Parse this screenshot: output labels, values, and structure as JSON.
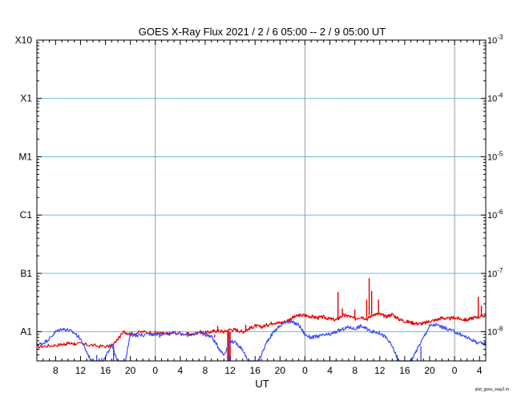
{
  "chart_data": {
    "type": "line",
    "title": "GOES X-Ray Flux   2021 /  2  /  6   05:00 --  2  /  9   05:00   UT",
    "xlabel": "UT",
    "ylabel": "",
    "footer": "plot_goes_xray2.m",
    "x_range_hours": [
      0,
      72
    ],
    "x_ticks": [
      {
        "t": 3,
        "label": "8"
      },
      {
        "t": 7,
        "label": "12"
      },
      {
        "t": 11,
        "label": "16"
      },
      {
        "t": 15,
        "label": "20"
      },
      {
        "t": 19,
        "label": "0"
      },
      {
        "t": 23,
        "label": "4"
      },
      {
        "t": 27,
        "label": "8"
      },
      {
        "t": 31,
        "label": "12"
      },
      {
        "t": 35,
        "label": "16"
      },
      {
        "t": 39,
        "label": "20"
      },
      {
        "t": 43,
        "label": "0"
      },
      {
        "t": 47,
        "label": "4"
      },
      {
        "t": 51,
        "label": "8"
      },
      {
        "t": 55,
        "label": "12"
      },
      {
        "t": 59,
        "label": "16"
      },
      {
        "t": 63,
        "label": "20"
      },
      {
        "t": 67,
        "label": "0"
      },
      {
        "t": 71,
        "label": "4"
      }
    ],
    "day_boundaries_hours": [
      19,
      43,
      67
    ],
    "y_scale": "log",
    "y_range_log10": [
      -8.5,
      -3
    ],
    "y_left_labels": [
      {
        "log": -8,
        "label": "A1"
      },
      {
        "log": -7,
        "label": "B1"
      },
      {
        "log": -6,
        "label": "C1"
      },
      {
        "log": -5,
        "label": "M1"
      },
      {
        "log": -4,
        "label": "X1"
      },
      {
        "log": -3,
        "label": "X10"
      }
    ],
    "y_right_labels": [
      {
        "log": -8,
        "label": "10",
        "exp": "-8"
      },
      {
        "log": -7,
        "label": "10",
        "exp": "-7"
      },
      {
        "log": -6,
        "label": "10",
        "exp": "-6"
      },
      {
        "log": -5,
        "label": "10",
        "exp": "-5"
      },
      {
        "log": -4,
        "label": "10",
        "exp": "-4"
      },
      {
        "log": -3,
        "label": "10",
        "exp": "-3"
      }
    ],
    "grid": true,
    "series": [
      {
        "color": "#e60000",
        "points_log10": [
          [
            0,
            -8.26
          ],
          [
            2,
            -8.24
          ],
          [
            4,
            -8.22
          ],
          [
            5,
            -8.2
          ],
          [
            6,
            -8.2
          ],
          [
            8,
            -8.22
          ],
          [
            10,
            -8.25
          ],
          [
            12,
            -8.25
          ],
          [
            14,
            -8.0
          ],
          [
            15,
            -8.04
          ],
          [
            17,
            -8.0
          ],
          [
            19,
            -8.02
          ],
          [
            20,
            -8.03
          ],
          [
            21,
            -8.04
          ],
          [
            22,
            -8.02
          ],
          [
            24,
            -8.04
          ],
          [
            25,
            -8.05
          ],
          [
            26,
            -8.0
          ],
          [
            27,
            -8.02
          ],
          [
            28,
            -8.0
          ],
          [
            29,
            -7.98
          ],
          [
            30,
            -8.0
          ],
          [
            31,
            -7.96
          ],
          [
            32,
            -7.97
          ],
          [
            33,
            -8.0
          ],
          [
            34,
            -7.95
          ],
          [
            35,
            -7.9
          ],
          [
            36,
            -7.92
          ],
          [
            37,
            -7.88
          ],
          [
            38,
            -7.84
          ],
          [
            39,
            -7.85
          ],
          [
            40,
            -7.82
          ],
          [
            41,
            -7.76
          ],
          [
            42,
            -7.72
          ],
          [
            43,
            -7.72
          ],
          [
            44,
            -7.74
          ],
          [
            45,
            -7.76
          ],
          [
            46,
            -7.75
          ],
          [
            47,
            -7.78
          ],
          [
            48,
            -7.8
          ],
          [
            49,
            -7.72
          ],
          [
            50,
            -7.73
          ],
          [
            51,
            -7.78
          ],
          [
            52,
            -7.74
          ],
          [
            53,
            -7.78
          ],
          [
            54,
            -7.7
          ],
          [
            55,
            -7.7
          ],
          [
            56,
            -7.74
          ],
          [
            57,
            -7.7
          ],
          [
            58,
            -7.78
          ],
          [
            59,
            -7.82
          ],
          [
            60,
            -7.84
          ],
          [
            61,
            -7.86
          ],
          [
            62,
            -7.86
          ],
          [
            63,
            -7.82
          ],
          [
            64,
            -7.8
          ],
          [
            65,
            -7.76
          ],
          [
            66,
            -7.78
          ],
          [
            67,
            -7.76
          ],
          [
            68,
            -7.78
          ],
          [
            69,
            -7.8
          ],
          [
            70,
            -7.76
          ],
          [
            71,
            -7.74
          ],
          [
            72,
            -7.72
          ]
        ],
        "spikes": [
          [
            6,
            -8.24,
            -8.18
          ],
          [
            19.7,
            -8.04,
            -8.1
          ],
          [
            28.5,
            -8.05,
            -8.1
          ],
          [
            29,
            -8.0,
            -7.9
          ],
          [
            30.6,
            -8.0,
            -8.5
          ],
          [
            30.8,
            -8.0,
            -8.5
          ],
          [
            31,
            -8.0,
            -8.5
          ],
          [
            33.5,
            -7.98,
            -7.88
          ],
          [
            48.3,
            -7.8,
            -7.32
          ],
          [
            49,
            -7.74,
            -7.6
          ],
          [
            51,
            -7.78,
            -7.62
          ],
          [
            52.9,
            -7.76,
            -7.45
          ],
          [
            53.3,
            -7.72,
            -7.08
          ],
          [
            53.7,
            -7.7,
            -7.3
          ],
          [
            54.8,
            -7.7,
            -7.45
          ],
          [
            70.8,
            -7.76,
            -7.4
          ],
          [
            71.3,
            -7.74,
            -7.55
          ]
        ]
      },
      {
        "color": "#3b4bff",
        "points_log10": [
          [
            0,
            -8.22
          ],
          [
            1,
            -8.2
          ],
          [
            2,
            -8.12
          ],
          [
            3,
            -8.0
          ],
          [
            4,
            -7.95
          ],
          [
            5,
            -7.97
          ],
          [
            6,
            -8.02
          ],
          [
            7,
            -8.12
          ],
          [
            8,
            -8.35
          ],
          [
            9,
            -8.55
          ],
          [
            10,
            -8.6
          ],
          [
            11,
            -8.45
          ],
          [
            12,
            -8.2
          ],
          [
            13,
            -8.55
          ],
          [
            14,
            -8.6
          ],
          [
            15,
            -8.05
          ],
          [
            16,
            -8.06
          ],
          [
            18,
            -8.05
          ],
          [
            19,
            -8.04
          ],
          [
            20,
            -8.04
          ],
          [
            22,
            -8.02
          ],
          [
            24,
            -8.06
          ],
          [
            26,
            -8.02
          ],
          [
            27,
            -8.05
          ],
          [
            28,
            -8.08
          ],
          [
            29,
            -8.25
          ],
          [
            30,
            -8.4
          ],
          [
            31,
            -8.15
          ],
          [
            32,
            -8.2
          ],
          [
            33,
            -8.3
          ],
          [
            34,
            -8.55
          ],
          [
            35,
            -8.6
          ],
          [
            36,
            -8.4
          ],
          [
            37,
            -8.15
          ],
          [
            38,
            -8.0
          ],
          [
            39,
            -7.9
          ],
          [
            40,
            -7.82
          ],
          [
            41,
            -7.84
          ],
          [
            42,
            -7.88
          ],
          [
            43,
            -8.05
          ],
          [
            44,
            -8.1
          ],
          [
            45,
            -8.08
          ],
          [
            46,
            -8.06
          ],
          [
            47,
            -8.05
          ],
          [
            48,
            -8.0
          ],
          [
            49,
            -7.96
          ],
          [
            50,
            -7.92
          ],
          [
            51,
            -7.95
          ],
          [
            52,
            -7.9
          ],
          [
            53,
            -7.96
          ],
          [
            54,
            -8.0
          ],
          [
            55,
            -8.02
          ],
          [
            56,
            -8.1
          ],
          [
            57,
            -8.25
          ],
          [
            58,
            -8.5
          ],
          [
            59,
            -8.58
          ],
          [
            60,
            -8.5
          ],
          [
            61,
            -8.3
          ],
          [
            62,
            -8.1
          ],
          [
            63,
            -7.9
          ],
          [
            64,
            -7.88
          ],
          [
            65,
            -7.92
          ],
          [
            66,
            -7.96
          ],
          [
            67,
            -8.0
          ],
          [
            68,
            -8.05
          ],
          [
            69,
            -8.1
          ],
          [
            70,
            -8.15
          ],
          [
            71,
            -8.2
          ],
          [
            72,
            -8.2
          ]
        ],
        "spikes": [
          [
            9.6,
            -8.4,
            -8.6
          ],
          [
            10.4,
            -8.45,
            -8.6
          ],
          [
            12.3,
            -8.2,
            -8.6
          ],
          [
            13.2,
            -8.5,
            -8.6
          ],
          [
            30.7,
            -8.4,
            -8.6
          ],
          [
            34.8,
            -8.55,
            -8.6
          ],
          [
            35.5,
            -8.55,
            -8.6
          ],
          [
            57.8,
            -8.4,
            -8.6
          ],
          [
            58.8,
            -8.5,
            -8.6
          ],
          [
            60.2,
            -8.45,
            -8.6
          ],
          [
            61.6,
            -8.25,
            -8.6
          ]
        ]
      }
    ]
  }
}
